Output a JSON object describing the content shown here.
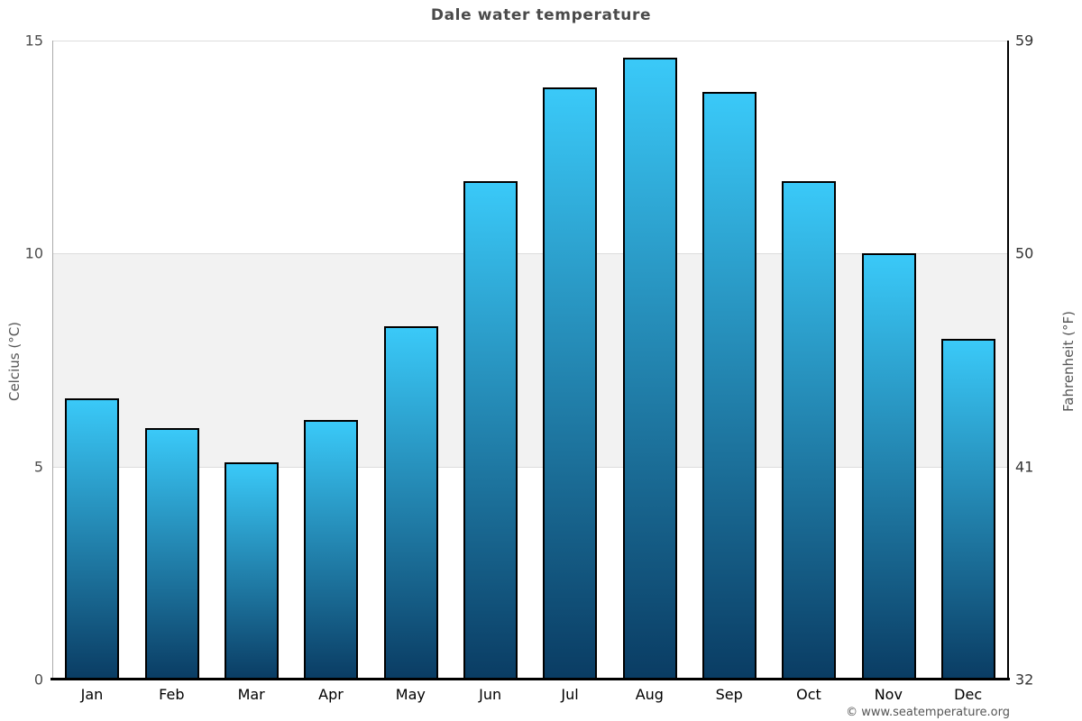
{
  "title": "Dale water temperature",
  "copyright": "© www.seatemperature.org",
  "chart_data": {
    "type": "bar",
    "title": "Dale water temperature",
    "categories": [
      "Jan",
      "Feb",
      "Mar",
      "Apr",
      "May",
      "Jun",
      "Jul",
      "Aug",
      "Sep",
      "Oct",
      "Nov",
      "Dec"
    ],
    "values": [
      6.6,
      5.9,
      5.1,
      6.1,
      8.3,
      11.7,
      13.9,
      14.6,
      13.8,
      11.7,
      10.0,
      8.0
    ],
    "ylabel_left": "Celcius (°C)",
    "ylabel_right": "Fahrenheit (°F)",
    "ylim": [
      0,
      15
    ],
    "yticks_left": [
      0,
      5,
      10,
      15
    ],
    "yticks_right": [
      32,
      41,
      50,
      59
    ],
    "shaded_band_celsius": [
      5,
      10
    ],
    "gridlines_celsius": [
      5,
      10,
      15
    ],
    "grid": "horizontal-only",
    "legend": "none",
    "bar_color_top": "#3ac9f8",
    "bar_color_bottom": "#0a3c63",
    "bar_border_color": "#000000",
    "band_color": "#f2f2f2"
  }
}
